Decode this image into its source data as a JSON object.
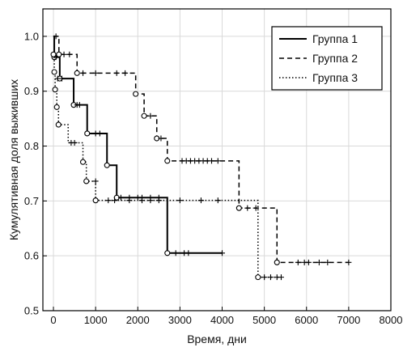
{
  "chart_data": {
    "type": "line",
    "subtype": "kaplan-meier step plot",
    "title": "",
    "xlabel": "Время, дни",
    "ylabel": "Кумулятивная доля выживших",
    "xlim": [
      -250,
      8000
    ],
    "ylim": [
      0.5,
      1.05
    ],
    "xticks": [
      0,
      1000,
      2000,
      3000,
      4000,
      5000,
      6000,
      7000,
      8000
    ],
    "yticks": [
      0.5,
      0.6,
      0.7,
      0.8,
      0.9,
      1.0
    ],
    "xtick_labels": [
      "0",
      "1000",
      "2000",
      "3000",
      "4000",
      "5000",
      "6000",
      "7000",
      "8000"
    ],
    "ytick_labels": [
      "0.5",
      "0.6",
      "0.7",
      "0.8",
      "0.9",
      "1.0"
    ],
    "grid": true,
    "legend_position": "top-right",
    "series": [
      {
        "name": "Группа 1",
        "line_style": "solid",
        "steps": [
          [
            0,
            1.0
          ],
          [
            20,
            0.962
          ],
          [
            150,
            0.923
          ],
          [
            480,
            0.875
          ],
          [
            800,
            0.823
          ],
          [
            1270,
            0.765
          ],
          [
            1500,
            0.706
          ],
          [
            2700,
            0.605
          ],
          [
            4000,
            0.605
          ]
        ],
        "events": [
          [
            20,
            0.962
          ],
          [
            150,
            0.923
          ],
          [
            480,
            0.875
          ],
          [
            800,
            0.823
          ],
          [
            1270,
            0.765
          ],
          [
            1500,
            0.706
          ],
          [
            2700,
            0.605
          ]
        ],
        "censored": [
          [
            60,
            0.962
          ],
          [
            100,
            0.923
          ],
          [
            200,
            0.923
          ],
          [
            560,
            0.875
          ],
          [
            620,
            0.875
          ],
          [
            1000,
            0.823
          ],
          [
            1100,
            0.823
          ],
          [
            1600,
            0.706
          ],
          [
            1800,
            0.706
          ],
          [
            2000,
            0.706
          ],
          [
            2100,
            0.706
          ],
          [
            2300,
            0.706
          ],
          [
            2500,
            0.706
          ],
          [
            2900,
            0.605
          ],
          [
            3100,
            0.605
          ],
          [
            3200,
            0.605
          ],
          [
            4000,
            0.605
          ]
        ]
      },
      {
        "name": "Группа 2",
        "line_style": "dashed",
        "steps": [
          [
            0,
            1.0
          ],
          [
            130,
            0.967
          ],
          [
            560,
            0.933
          ],
          [
            1950,
            0.895
          ],
          [
            2150,
            0.855
          ],
          [
            2450,
            0.814
          ],
          [
            2700,
            0.773
          ],
          [
            4400,
            0.687
          ],
          [
            5300,
            0.588
          ],
          [
            7000,
            0.588
          ]
        ],
        "events": [
          [
            130,
            0.967
          ],
          [
            560,
            0.933
          ],
          [
            1950,
            0.895
          ],
          [
            2150,
            0.855
          ],
          [
            2450,
            0.814
          ],
          [
            2700,
            0.773
          ],
          [
            4400,
            0.687
          ],
          [
            5300,
            0.588
          ]
        ],
        "censored": [
          [
            60,
            1.0
          ],
          [
            250,
            0.967
          ],
          [
            380,
            0.967
          ],
          [
            700,
            0.933
          ],
          [
            1000,
            0.933
          ],
          [
            1500,
            0.933
          ],
          [
            1700,
            0.933
          ],
          [
            2300,
            0.855
          ],
          [
            2550,
            0.814
          ],
          [
            3050,
            0.773
          ],
          [
            3150,
            0.773
          ],
          [
            3250,
            0.773
          ],
          [
            3350,
            0.773
          ],
          [
            3450,
            0.773
          ],
          [
            3550,
            0.773
          ],
          [
            3650,
            0.773
          ],
          [
            3750,
            0.773
          ],
          [
            3900,
            0.773
          ],
          [
            4600,
            0.687
          ],
          [
            4800,
            0.687
          ],
          [
            5800,
            0.588
          ],
          [
            5950,
            0.588
          ],
          [
            6050,
            0.588
          ],
          [
            6300,
            0.588
          ],
          [
            6500,
            0.588
          ],
          [
            7000,
            0.588
          ]
        ],
        "censored_end": [
          7000,
          0.588
        ]
      },
      {
        "name": "Группа 3",
        "line_style": "dotted",
        "steps": [
          [
            0,
            0.967
          ],
          [
            20,
            0.935
          ],
          [
            40,
            0.903
          ],
          [
            80,
            0.871
          ],
          [
            120,
            0.839
          ],
          [
            350,
            0.806
          ],
          [
            700,
            0.771
          ],
          [
            780,
            0.736
          ],
          [
            1000,
            0.701
          ],
          [
            4850,
            0.561
          ],
          [
            5400,
            0.561
          ]
        ],
        "events": [
          [
            0,
            0.967
          ],
          [
            20,
            0.935
          ],
          [
            40,
            0.903
          ],
          [
            80,
            0.871
          ],
          [
            120,
            0.839
          ],
          [
            700,
            0.771
          ],
          [
            780,
            0.736
          ],
          [
            1000,
            0.701
          ],
          [
            4850,
            0.561
          ]
        ],
        "censored": [
          [
            420,
            0.806
          ],
          [
            500,
            0.806
          ],
          [
            1000,
            0.736
          ],
          [
            1300,
            0.701
          ],
          [
            1450,
            0.701
          ],
          [
            1800,
            0.701
          ],
          [
            2100,
            0.701
          ],
          [
            2300,
            0.701
          ],
          [
            2500,
            0.701
          ],
          [
            3000,
            0.701
          ],
          [
            3500,
            0.701
          ],
          [
            3900,
            0.701
          ],
          [
            5000,
            0.561
          ],
          [
            5150,
            0.561
          ],
          [
            5300,
            0.561
          ],
          [
            5400,
            0.561
          ]
        ]
      }
    ]
  }
}
